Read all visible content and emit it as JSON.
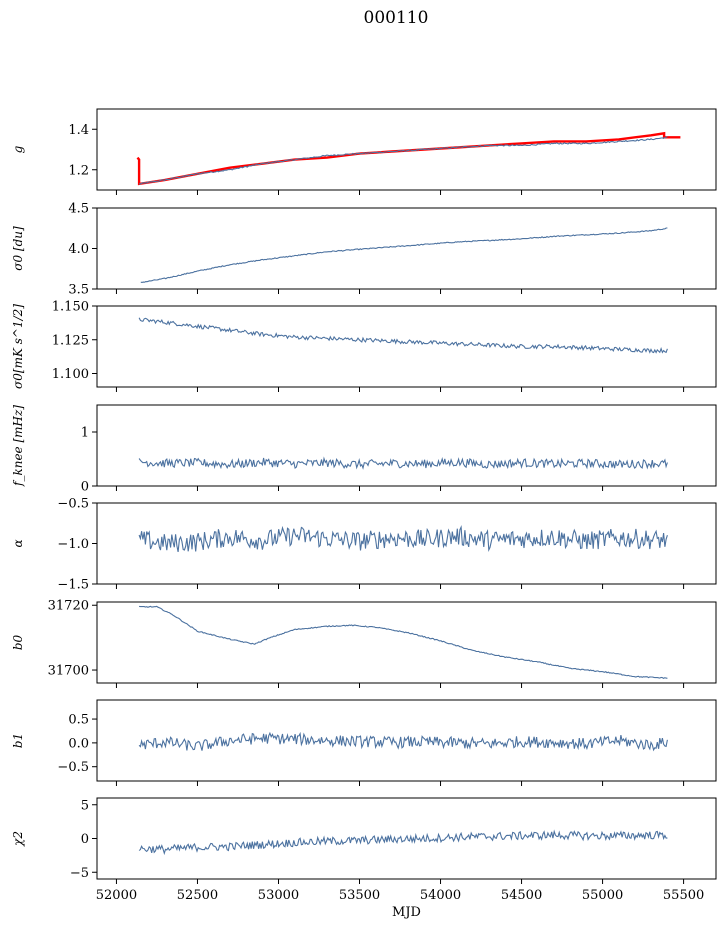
{
  "title": "000110",
  "chart_data": [
    {
      "type": "line",
      "ylabel": "g",
      "ylim": [
        1.1,
        1.5
      ],
      "yticks": [
        1.2,
        1.4
      ],
      "ytick_labels": [
        "1.2",
        "1.4"
      ],
      "xlim": [
        51880,
        55700
      ],
      "series": [
        {
          "color": "#ff0000",
          "x": [
            52130,
            52140,
            52140,
            52300,
            52500,
            52700,
            52900,
            53100,
            53300,
            53500,
            53700,
            53900,
            54100,
            54300,
            54500,
            54700,
            54900,
            55100,
            55300,
            55380,
            55380,
            55480
          ],
          "y": [
            1.26,
            1.25,
            1.13,
            1.15,
            1.18,
            1.21,
            1.23,
            1.25,
            1.26,
            1.28,
            1.29,
            1.3,
            1.31,
            1.32,
            1.33,
            1.34,
            1.34,
            1.35,
            1.37,
            1.38,
            1.36,
            1.36
          ]
        },
        {
          "color": "#4c72a0",
          "x": [
            52140,
            52300,
            52500,
            52700,
            52900,
            53100,
            53300,
            53500,
            53700,
            53900,
            54100,
            54300,
            54500,
            54700,
            54900,
            55100,
            55300,
            55400
          ],
          "y": [
            1.13,
            1.15,
            1.18,
            1.2,
            1.23,
            1.25,
            1.27,
            1.28,
            1.29,
            1.3,
            1.31,
            1.32,
            1.32,
            1.33,
            1.33,
            1.34,
            1.35,
            1.36
          ]
        }
      ]
    },
    {
      "type": "line",
      "ylabel": "σ0 [du]",
      "ylim": [
        3.5,
        4.5
      ],
      "yticks": [
        3.5,
        4.0,
        4.5
      ],
      "ytick_labels": [
        "3.5",
        "4.0",
        "4.5"
      ],
      "xlim": [
        51880,
        55700
      ],
      "series": [
        {
          "color": "#4c72a0",
          "x": [
            52150,
            52300,
            52500,
            52700,
            52900,
            53100,
            53300,
            53500,
            53700,
            53900,
            54100,
            54300,
            54500,
            54700,
            54900,
            55100,
            55300,
            55400
          ],
          "y": [
            3.58,
            3.63,
            3.72,
            3.8,
            3.86,
            3.91,
            3.96,
            3.99,
            4.02,
            4.05,
            4.08,
            4.1,
            4.12,
            4.15,
            4.17,
            4.19,
            4.22,
            4.25
          ]
        }
      ]
    },
    {
      "type": "line",
      "ylabel": "σ0[mK s^1/2]",
      "ylim": [
        1.09,
        1.15
      ],
      "yticks": [
        1.1,
        1.125,
        1.15
      ],
      "ytick_labels": [
        "1.100",
        "1.125",
        "1.150"
      ],
      "xlim": [
        51880,
        55700
      ],
      "series": [
        {
          "color": "#4c72a0",
          "x": [
            52140,
            52300,
            52500,
            52700,
            52900,
            53100,
            53300,
            53500,
            53700,
            53900,
            54100,
            54300,
            54500,
            54700,
            54900,
            55100,
            55300,
            55400
          ],
          "y": [
            1.14,
            1.138,
            1.135,
            1.132,
            1.129,
            1.127,
            1.126,
            1.125,
            1.124,
            1.123,
            1.122,
            1.121,
            1.12,
            1.12,
            1.119,
            1.118,
            1.117,
            1.117
          ]
        }
      ]
    },
    {
      "type": "line",
      "ylabel": "f_knee [mHz]",
      "ylim": [
        0,
        1.5
      ],
      "yticks": [
        0,
        1
      ],
      "ytick_labels": [
        "0",
        "1"
      ],
      "xlim": [
        51880,
        55700
      ],
      "series": [
        {
          "color": "#4c72a0",
          "x": [
            52140,
            52300,
            52500,
            52700,
            52900,
            53100,
            53300,
            53500,
            53700,
            53900,
            54100,
            54300,
            54500,
            54700,
            54900,
            55100,
            55300,
            55400
          ],
          "y": [
            0.45,
            0.42,
            0.43,
            0.4,
            0.44,
            0.41,
            0.43,
            0.4,
            0.42,
            0.41,
            0.44,
            0.4,
            0.43,
            0.41,
            0.42,
            0.4,
            0.42,
            0.41
          ]
        }
      ]
    },
    {
      "type": "line",
      "ylabel": "α",
      "ylim": [
        -1.5,
        -0.5
      ],
      "yticks": [
        -1.5,
        -1.0,
        -0.5
      ],
      "ytick_labels": [
        "−1.5",
        "−1.0",
        "−0.5"
      ],
      "xlim": [
        51880,
        55700
      ],
      "series": [
        {
          "color": "#4c72a0",
          "x": [
            52140,
            52300,
            52500,
            52700,
            52900,
            53100,
            53300,
            53500,
            53700,
            53900,
            54100,
            54300,
            54500,
            54700,
            54900,
            55100,
            55300,
            55400
          ],
          "y": [
            -0.95,
            -1.0,
            -0.98,
            -0.92,
            -0.96,
            -0.9,
            -0.94,
            -0.97,
            -0.93,
            -0.95,
            -0.91,
            -0.96,
            -0.94,
            -0.92,
            -0.97,
            -0.93,
            -0.95,
            -0.96
          ]
        }
      ]
    },
    {
      "type": "line",
      "ylabel": "b0",
      "ylim": [
        31696,
        31721
      ],
      "yticks": [
        31700,
        31720
      ],
      "ytick_labels": [
        "31700",
        "31720"
      ],
      "xlim": [
        51880,
        55700
      ],
      "series": [
        {
          "color": "#4c72a0",
          "x": [
            52140,
            52250,
            52350,
            52500,
            52700,
            52850,
            52950,
            53100,
            53300,
            53450,
            53600,
            53800,
            54000,
            54200,
            54400,
            54600,
            54800,
            55000,
            55200,
            55400
          ],
          "y": [
            31719.5,
            31719.5,
            31717,
            31712,
            31709.5,
            31708,
            31710,
            31712.5,
            31713.5,
            31713.8,
            31713.2,
            31711.5,
            31709,
            31706,
            31704,
            31702.5,
            31700.5,
            31699.5,
            31698,
            31697.5
          ]
        }
      ]
    },
    {
      "type": "line",
      "ylabel": "b1",
      "ylim": [
        -0.8,
        0.9
      ],
      "yticks": [
        -0.5,
        0.0,
        0.5
      ],
      "ytick_labels": [
        "−0.5",
        "0.0",
        "0.5"
      ],
      "xlim": [
        51880,
        55700
      ],
      "series": [
        {
          "color": "#4c72a0",
          "x": [
            52140,
            52300,
            52500,
            52700,
            52900,
            53100,
            53300,
            53500,
            53700,
            53900,
            54100,
            54300,
            54500,
            54700,
            54900,
            55100,
            55300,
            55400
          ],
          "y": [
            -0.05,
            0.02,
            -0.08,
            0.05,
            0.1,
            0.08,
            0.05,
            0.03,
            0.01,
            0.02,
            0.0,
            -0.02,
            0.03,
            0.01,
            -0.02,
            0.05,
            -0.05,
            0.02
          ]
        }
      ]
    },
    {
      "type": "line",
      "ylabel": "χ2",
      "ylim": [
        -6,
        6
      ],
      "yticks": [
        -5,
        0,
        5
      ],
      "ytick_labels": [
        "−5",
        "0",
        "5"
      ],
      "xlim": [
        51880,
        55700
      ],
      "xticks": [
        52000,
        52500,
        53000,
        53500,
        54000,
        54500,
        55000,
        55500
      ],
      "xtick_labels": [
        "52000",
        "52500",
        "53000",
        "53500",
        "54000",
        "54500",
        "55000",
        "55500"
      ],
      "xlabel": "MJD",
      "series": [
        {
          "color": "#4c72a0",
          "x": [
            52140,
            52300,
            52500,
            52700,
            52900,
            53100,
            53300,
            53500,
            53700,
            53900,
            54100,
            54300,
            54500,
            54700,
            54900,
            55100,
            55300,
            55400
          ],
          "y": [
            -1.5,
            -1.6,
            -1.3,
            -1.2,
            -0.9,
            -0.6,
            -0.4,
            -0.3,
            -0.1,
            0.0,
            0.2,
            0.3,
            0.4,
            0.5,
            0.4,
            0.4,
            0.5,
            0.5
          ]
        }
      ]
    }
  ]
}
